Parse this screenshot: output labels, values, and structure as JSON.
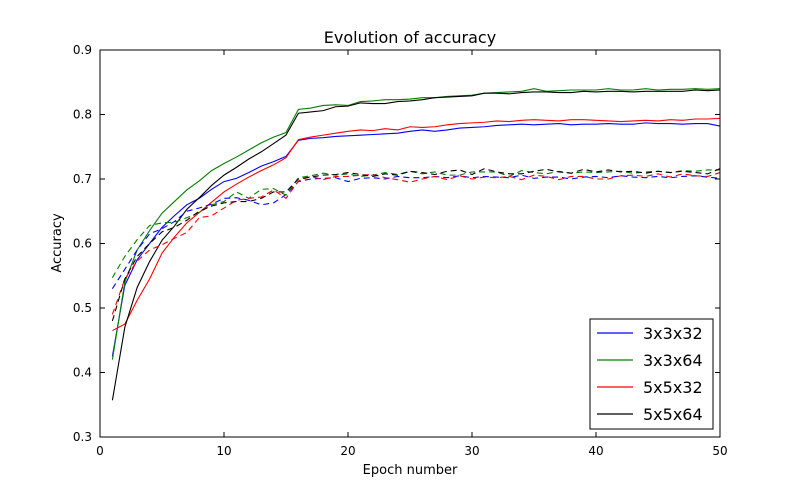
{
  "chart_data": {
    "type": "line",
    "title": "Evolution of accuracy",
    "xlabel": "Epoch number",
    "ylabel": "Accuracy",
    "xlim": [
      0,
      50
    ],
    "ylim": [
      0.3,
      0.9
    ],
    "xticks": [
      0,
      10,
      20,
      30,
      40,
      50
    ],
    "yticks": [
      0.3,
      0.4,
      0.5,
      0.6,
      0.7,
      0.8,
      0.9
    ],
    "grid": false,
    "legend_position": "lower-right",
    "legend": [
      "3x3x32",
      "3x3x64",
      "5x5x32",
      "5x5x64"
    ],
    "x": [
      1,
      2,
      3,
      4,
      5,
      6,
      7,
      8,
      9,
      10,
      11,
      12,
      13,
      14,
      15,
      16,
      17,
      18,
      19,
      20,
      21,
      22,
      23,
      24,
      25,
      26,
      27,
      28,
      29,
      30,
      31,
      32,
      33,
      34,
      35,
      36,
      37,
      38,
      39,
      40,
      41,
      42,
      43,
      44,
      45,
      46,
      47,
      48,
      49,
      50
    ],
    "series": [
      {
        "legend_label": "3x3x32",
        "color": "#0000ff",
        "linestyle": "solid",
        "values": [
          0.425,
          0.535,
          0.575,
          0.6,
          0.625,
          0.643,
          0.66,
          0.67,
          0.684,
          0.696,
          0.701,
          0.71,
          0.72,
          0.727,
          0.735,
          0.76,
          0.763,
          0.764,
          0.766,
          0.767,
          0.768,
          0.769,
          0.77,
          0.771,
          0.774,
          0.776,
          0.774,
          0.776,
          0.779,
          0.78,
          0.781,
          0.783,
          0.784,
          0.785,
          0.784,
          0.785,
          0.786,
          0.784,
          0.785,
          0.785,
          0.786,
          0.785,
          0.785,
          0.787,
          0.786,
          0.786,
          0.785,
          0.786,
          0.786,
          0.782
        ]
      },
      {
        "legend_label": "3x3x64",
        "color": "#008000",
        "linestyle": "solid",
        "values": [
          0.42,
          0.54,
          0.59,
          0.62,
          0.647,
          0.665,
          0.683,
          0.697,
          0.713,
          0.724,
          0.734,
          0.745,
          0.756,
          0.765,
          0.772,
          0.808,
          0.81,
          0.814,
          0.815,
          0.814,
          0.82,
          0.821,
          0.823,
          0.823,
          0.824,
          0.826,
          0.826,
          0.828,
          0.829,
          0.83,
          0.833,
          0.834,
          0.835,
          0.836,
          0.84,
          0.836,
          0.837,
          0.838,
          0.838,
          0.838,
          0.84,
          0.838,
          0.838,
          0.84,
          0.838,
          0.839,
          0.839,
          0.84,
          0.839,
          0.84
        ]
      },
      {
        "legend_label": "5x5x32",
        "color": "#ff0000",
        "linestyle": "solid",
        "values": [
          0.465,
          0.475,
          0.512,
          0.545,
          0.585,
          0.61,
          0.632,
          0.648,
          0.664,
          0.68,
          0.692,
          0.703,
          0.713,
          0.722,
          0.733,
          0.761,
          0.765,
          0.768,
          0.771,
          0.774,
          0.776,
          0.775,
          0.778,
          0.776,
          0.781,
          0.78,
          0.781,
          0.784,
          0.786,
          0.787,
          0.788,
          0.79,
          0.789,
          0.791,
          0.792,
          0.791,
          0.79,
          0.792,
          0.792,
          0.791,
          0.79,
          0.789,
          0.79,
          0.791,
          0.79,
          0.792,
          0.791,
          0.793,
          0.793,
          0.794
        ]
      },
      {
        "legend_label": "5x5x64",
        "color": "#000000",
        "linestyle": "solid",
        "values": [
          0.357,
          0.47,
          0.532,
          0.572,
          0.605,
          0.627,
          0.653,
          0.671,
          0.69,
          0.706,
          0.718,
          0.731,
          0.742,
          0.755,
          0.768,
          0.802,
          0.804,
          0.806,
          0.812,
          0.813,
          0.818,
          0.817,
          0.817,
          0.82,
          0.821,
          0.823,
          0.826,
          0.827,
          0.828,
          0.829,
          0.833,
          0.833,
          0.832,
          0.834,
          0.835,
          0.835,
          0.834,
          0.834,
          0.836,
          0.835,
          0.836,
          0.836,
          0.835,
          0.836,
          0.836,
          0.836,
          0.836,
          0.838,
          0.837,
          0.838
        ]
      },
      {
        "legend_label": "",
        "color": "#0000ff",
        "linestyle": "dashed",
        "values": [
          0.53,
          0.56,
          0.59,
          0.615,
          0.623,
          0.634,
          0.65,
          0.655,
          0.661,
          0.67,
          0.671,
          0.667,
          0.66,
          0.663,
          0.676,
          0.696,
          0.7,
          0.701,
          0.702,
          0.696,
          0.701,
          0.702,
          0.7,
          0.704,
          0.702,
          0.702,
          0.704,
          0.702,
          0.705,
          0.702,
          0.704,
          0.703,
          0.702,
          0.706,
          0.701,
          0.703,
          0.703,
          0.7,
          0.703,
          0.704,
          0.702,
          0.705,
          0.703,
          0.702,
          0.704,
          0.702,
          0.704,
          0.705,
          0.703,
          0.701
        ]
      },
      {
        "legend_label": "",
        "color": "#008000",
        "linestyle": "dashed",
        "values": [
          0.547,
          0.58,
          0.606,
          0.628,
          0.632,
          0.633,
          0.64,
          0.648,
          0.66,
          0.665,
          0.68,
          0.67,
          0.684,
          0.685,
          0.675,
          0.702,
          0.705,
          0.709,
          0.706,
          0.708,
          0.704,
          0.706,
          0.71,
          0.707,
          0.712,
          0.708,
          0.711,
          0.706,
          0.706,
          0.711,
          0.711,
          0.711,
          0.704,
          0.713,
          0.71,
          0.708,
          0.712,
          0.709,
          0.711,
          0.71,
          0.711,
          0.712,
          0.709,
          0.711,
          0.712,
          0.71,
          0.713,
          0.712,
          0.714,
          0.714
        ]
      },
      {
        "legend_label": "",
        "color": "#ff0000",
        "linestyle": "dashed",
        "values": [
          0.49,
          0.545,
          0.573,
          0.59,
          0.598,
          0.608,
          0.617,
          0.64,
          0.643,
          0.655,
          0.667,
          0.67,
          0.672,
          0.683,
          0.67,
          0.697,
          0.704,
          0.699,
          0.704,
          0.704,
          0.706,
          0.707,
          0.702,
          0.699,
          0.695,
          0.7,
          0.704,
          0.699,
          0.705,
          0.7,
          0.703,
          0.702,
          0.704,
          0.699,
          0.706,
          0.704,
          0.699,
          0.704,
          0.704,
          0.7,
          0.7,
          0.705,
          0.706,
          0.704,
          0.708,
          0.703,
          0.708,
          0.705,
          0.704,
          0.71
        ]
      },
      {
        "legend_label": "",
        "color": "#000000",
        "linestyle": "dashed",
        "values": [
          0.48,
          0.545,
          0.58,
          0.6,
          0.618,
          0.625,
          0.636,
          0.65,
          0.658,
          0.663,
          0.665,
          0.665,
          0.67,
          0.68,
          0.68,
          0.7,
          0.703,
          0.706,
          0.707,
          0.71,
          0.707,
          0.704,
          0.708,
          0.706,
          0.712,
          0.71,
          0.707,
          0.712,
          0.714,
          0.707,
          0.716,
          0.711,
          0.708,
          0.708,
          0.712,
          0.715,
          0.711,
          0.709,
          0.715,
          0.711,
          0.714,
          0.711,
          0.712,
          0.709,
          0.712,
          0.71,
          0.712,
          0.71,
          0.708,
          0.716
        ]
      }
    ]
  }
}
